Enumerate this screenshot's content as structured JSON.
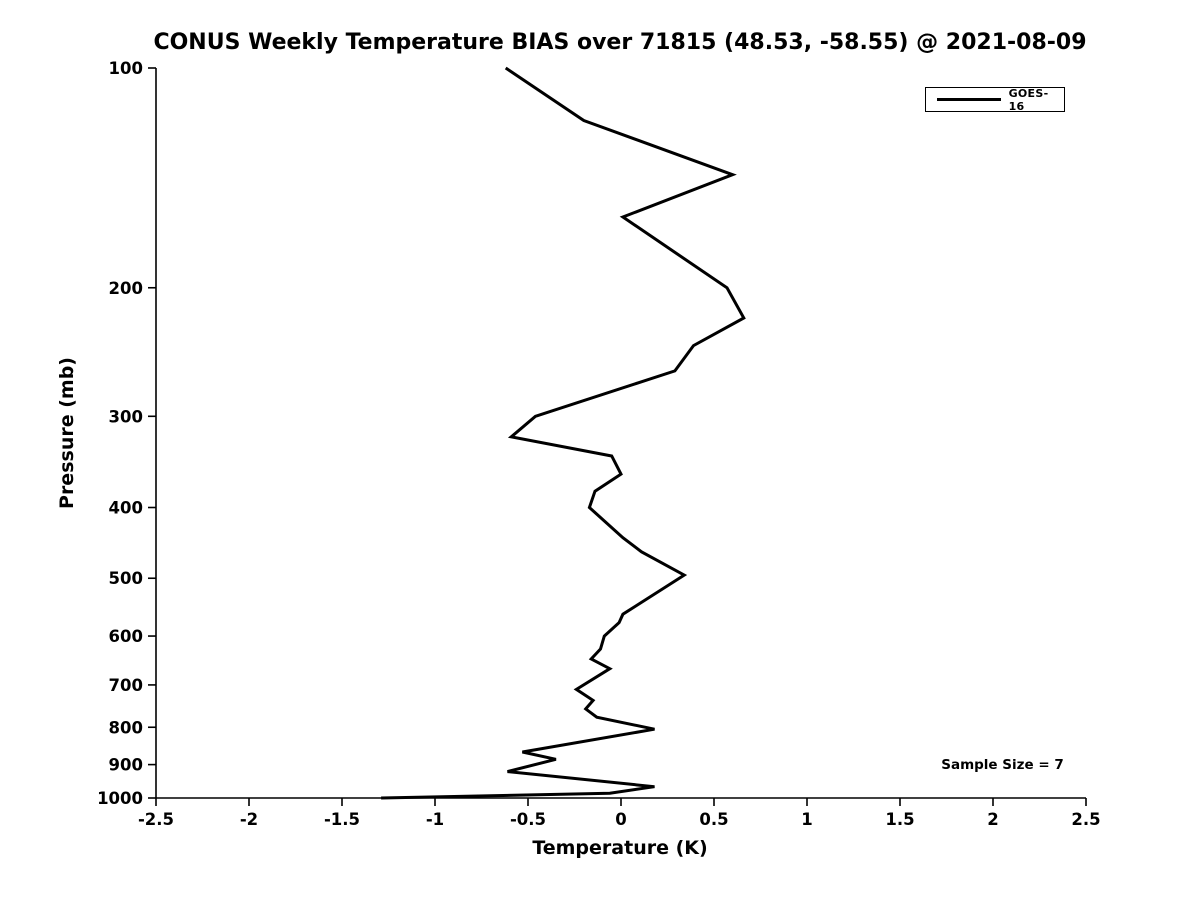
{
  "figure": {
    "background_color": "#ffffff",
    "axis_color": "#000000",
    "text_color": "#000000"
  },
  "chart_data": {
    "type": "line",
    "title": "CONUS Weekly Temperature BIAS over 71815 (48.53, -58.55) @ 2021-08-09",
    "xlabel": "Temperature (K)",
    "ylabel": "Pressure (mb)",
    "xlim": [
      -2.5,
      2.5
    ],
    "ylim": [
      100,
      1000
    ],
    "yscale": "log",
    "y_axis_direction": "inverted (100 mb at top, 1000 mb at bottom)",
    "grid": false,
    "x_ticks": [
      -2.5,
      -2,
      -1.5,
      -1,
      -0.5,
      0,
      0.5,
      1,
      1.5,
      2,
      2.5
    ],
    "x_tick_labels": [
      "-2.5",
      "-2",
      "-1.5",
      "-1",
      "-0.5",
      "0",
      "0.5",
      "1",
      "1.5",
      "2",
      "2.5"
    ],
    "y_ticks": [
      100,
      200,
      300,
      400,
      500,
      600,
      700,
      800,
      900,
      1000
    ],
    "y_tick_labels": [
      "100",
      "200",
      "300",
      "400",
      "500",
      "600",
      "700",
      "800",
      "900",
      "1000"
    ],
    "legend": {
      "position": "upper right",
      "entries": [
        {
          "label": "GOES-16",
          "color": "#000000",
          "line_width": 3
        }
      ]
    },
    "annotations": [
      {
        "text": "Sample Size = 7",
        "location": "lower right"
      }
    ],
    "series": [
      {
        "name": "GOES-16",
        "color": "#000000",
        "line_width": 3,
        "pressure_mb": [
          100,
          118,
          140,
          160,
          200,
          220,
          240,
          260,
          300,
          320,
          340,
          360,
          380,
          400,
          440,
          460,
          495,
          560,
          575,
          600,
          625,
          645,
          665,
          710,
          735,
          755,
          775,
          805,
          865,
          885,
          920,
          965,
          985,
          1000
        ],
        "bias_k": [
          -0.62,
          -0.2,
          0.6,
          0.01,
          0.57,
          0.66,
          0.39,
          0.29,
          -0.46,
          -0.59,
          -0.05,
          0.0,
          -0.14,
          -0.17,
          0.01,
          0.11,
          0.34,
          0.01,
          -0.01,
          -0.09,
          -0.11,
          -0.16,
          -0.06,
          -0.24,
          -0.15,
          -0.19,
          -0.13,
          0.18,
          -0.53,
          -0.35,
          -0.61,
          0.18,
          -0.06,
          -1.29
        ]
      }
    ]
  }
}
